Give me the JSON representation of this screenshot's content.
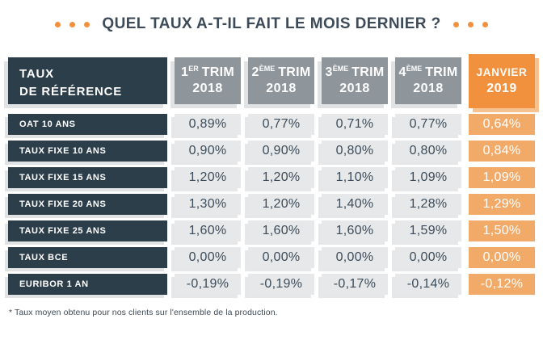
{
  "title": "QUEL TAUX A-T-IL FAIT LE MOIS DERNIER ?",
  "colors": {
    "accent_orange": "#f2913d",
    "light_orange_cell": "#f1aa68",
    "dark_navy": "#2d3e4b",
    "header_gray": "#8e969c",
    "cell_gray": "#e7e8e9",
    "text_slate": "#3c4c5a"
  },
  "table": {
    "corner": {
      "line1": "TAUX",
      "line2": "DE RÉFÉRENCE"
    },
    "columns": [
      {
        "num": "1",
        "sup": "ER",
        "word": "TRIM",
        "year": "2018"
      },
      {
        "num": "2",
        "sup": "ÈME",
        "word": "TRIM",
        "year": "2018"
      },
      {
        "num": "3",
        "sup": "ÈME",
        "word": "TRIM",
        "year": "2018"
      },
      {
        "num": "4",
        "sup": "ÈME",
        "word": "TRIM",
        "year": "2018"
      },
      {
        "word": "JANVIER",
        "year": "2019"
      }
    ],
    "rows": [
      {
        "label": "OAT 10 ANS",
        "values": [
          "0,89%",
          "0,77%",
          "0,71%",
          "0,77%",
          "0,64%"
        ]
      },
      {
        "label": "TAUX FIXE 10 ANS",
        "values": [
          "0,90%",
          "0,90%",
          "0,80%",
          "0,80%",
          "0,84%"
        ]
      },
      {
        "label": "TAUX FIXE 15 ANS",
        "values": [
          "1,20%",
          "1,20%",
          "1,10%",
          "1,09%",
          "1,09%"
        ]
      },
      {
        "label": "TAUX FIXE 20 ANS",
        "values": [
          "1,30%",
          "1,20%",
          "1,40%",
          "1,28%",
          "1,29%"
        ]
      },
      {
        "label": "TAUX FIXE 25 ANS",
        "values": [
          "1,60%",
          "1,60%",
          "1,60%",
          "1,59%",
          "1,50%"
        ]
      },
      {
        "label": "TAUX BCE",
        "values": [
          "0,00%",
          "0,00%",
          "0,00%",
          "0,00%",
          "0,00%"
        ]
      },
      {
        "label": "EURIBOR 1 AN",
        "values": [
          "-0,19%",
          "-0,19%",
          "-0,17%",
          "-0,14%",
          "-0,12%"
        ]
      }
    ]
  },
  "footnote": "* Taux moyen obtenu pour nos clients sur l'ensemble de la production.",
  "chart_data": {
    "type": "table",
    "title": "QUEL TAUX A-T-IL FAIT LE MOIS DERNIER ?",
    "columns": [
      "TAUX DE RÉFÉRENCE",
      "1er TRIM 2018",
      "2ème TRIM 2018",
      "3ème TRIM 2018",
      "4ème TRIM 2018",
      "JANVIER 2019"
    ],
    "rows": [
      {
        "label": "OAT 10 ANS",
        "values_pct": [
          0.89,
          0.77,
          0.71,
          0.77,
          0.64
        ]
      },
      {
        "label": "TAUX FIXE 10 ANS",
        "values_pct": [
          0.9,
          0.9,
          0.8,
          0.8,
          0.84
        ]
      },
      {
        "label": "TAUX FIXE 15 ANS",
        "values_pct": [
          1.2,
          1.2,
          1.1,
          1.09,
          1.09
        ]
      },
      {
        "label": "TAUX FIXE 20 ANS",
        "values_pct": [
          1.3,
          1.2,
          1.4,
          1.28,
          1.29
        ]
      },
      {
        "label": "TAUX FIXE 25 ANS",
        "values_pct": [
          1.6,
          1.6,
          1.6,
          1.59,
          1.5
        ]
      },
      {
        "label": "TAUX BCE",
        "values_pct": [
          0.0,
          0.0,
          0.0,
          0.0,
          0.0
        ]
      },
      {
        "label": "EURIBOR 1 AN",
        "values_pct": [
          -0.19,
          -0.19,
          -0.17,
          -0.14,
          -0.12
        ]
      }
    ],
    "note": "* Taux moyen obtenu pour nos clients sur l'ensemble de la production.",
    "layout": {
      "highlight_column": "JANVIER 2019",
      "highlight_color": "#f2913d",
      "grid": "off"
    }
  }
}
